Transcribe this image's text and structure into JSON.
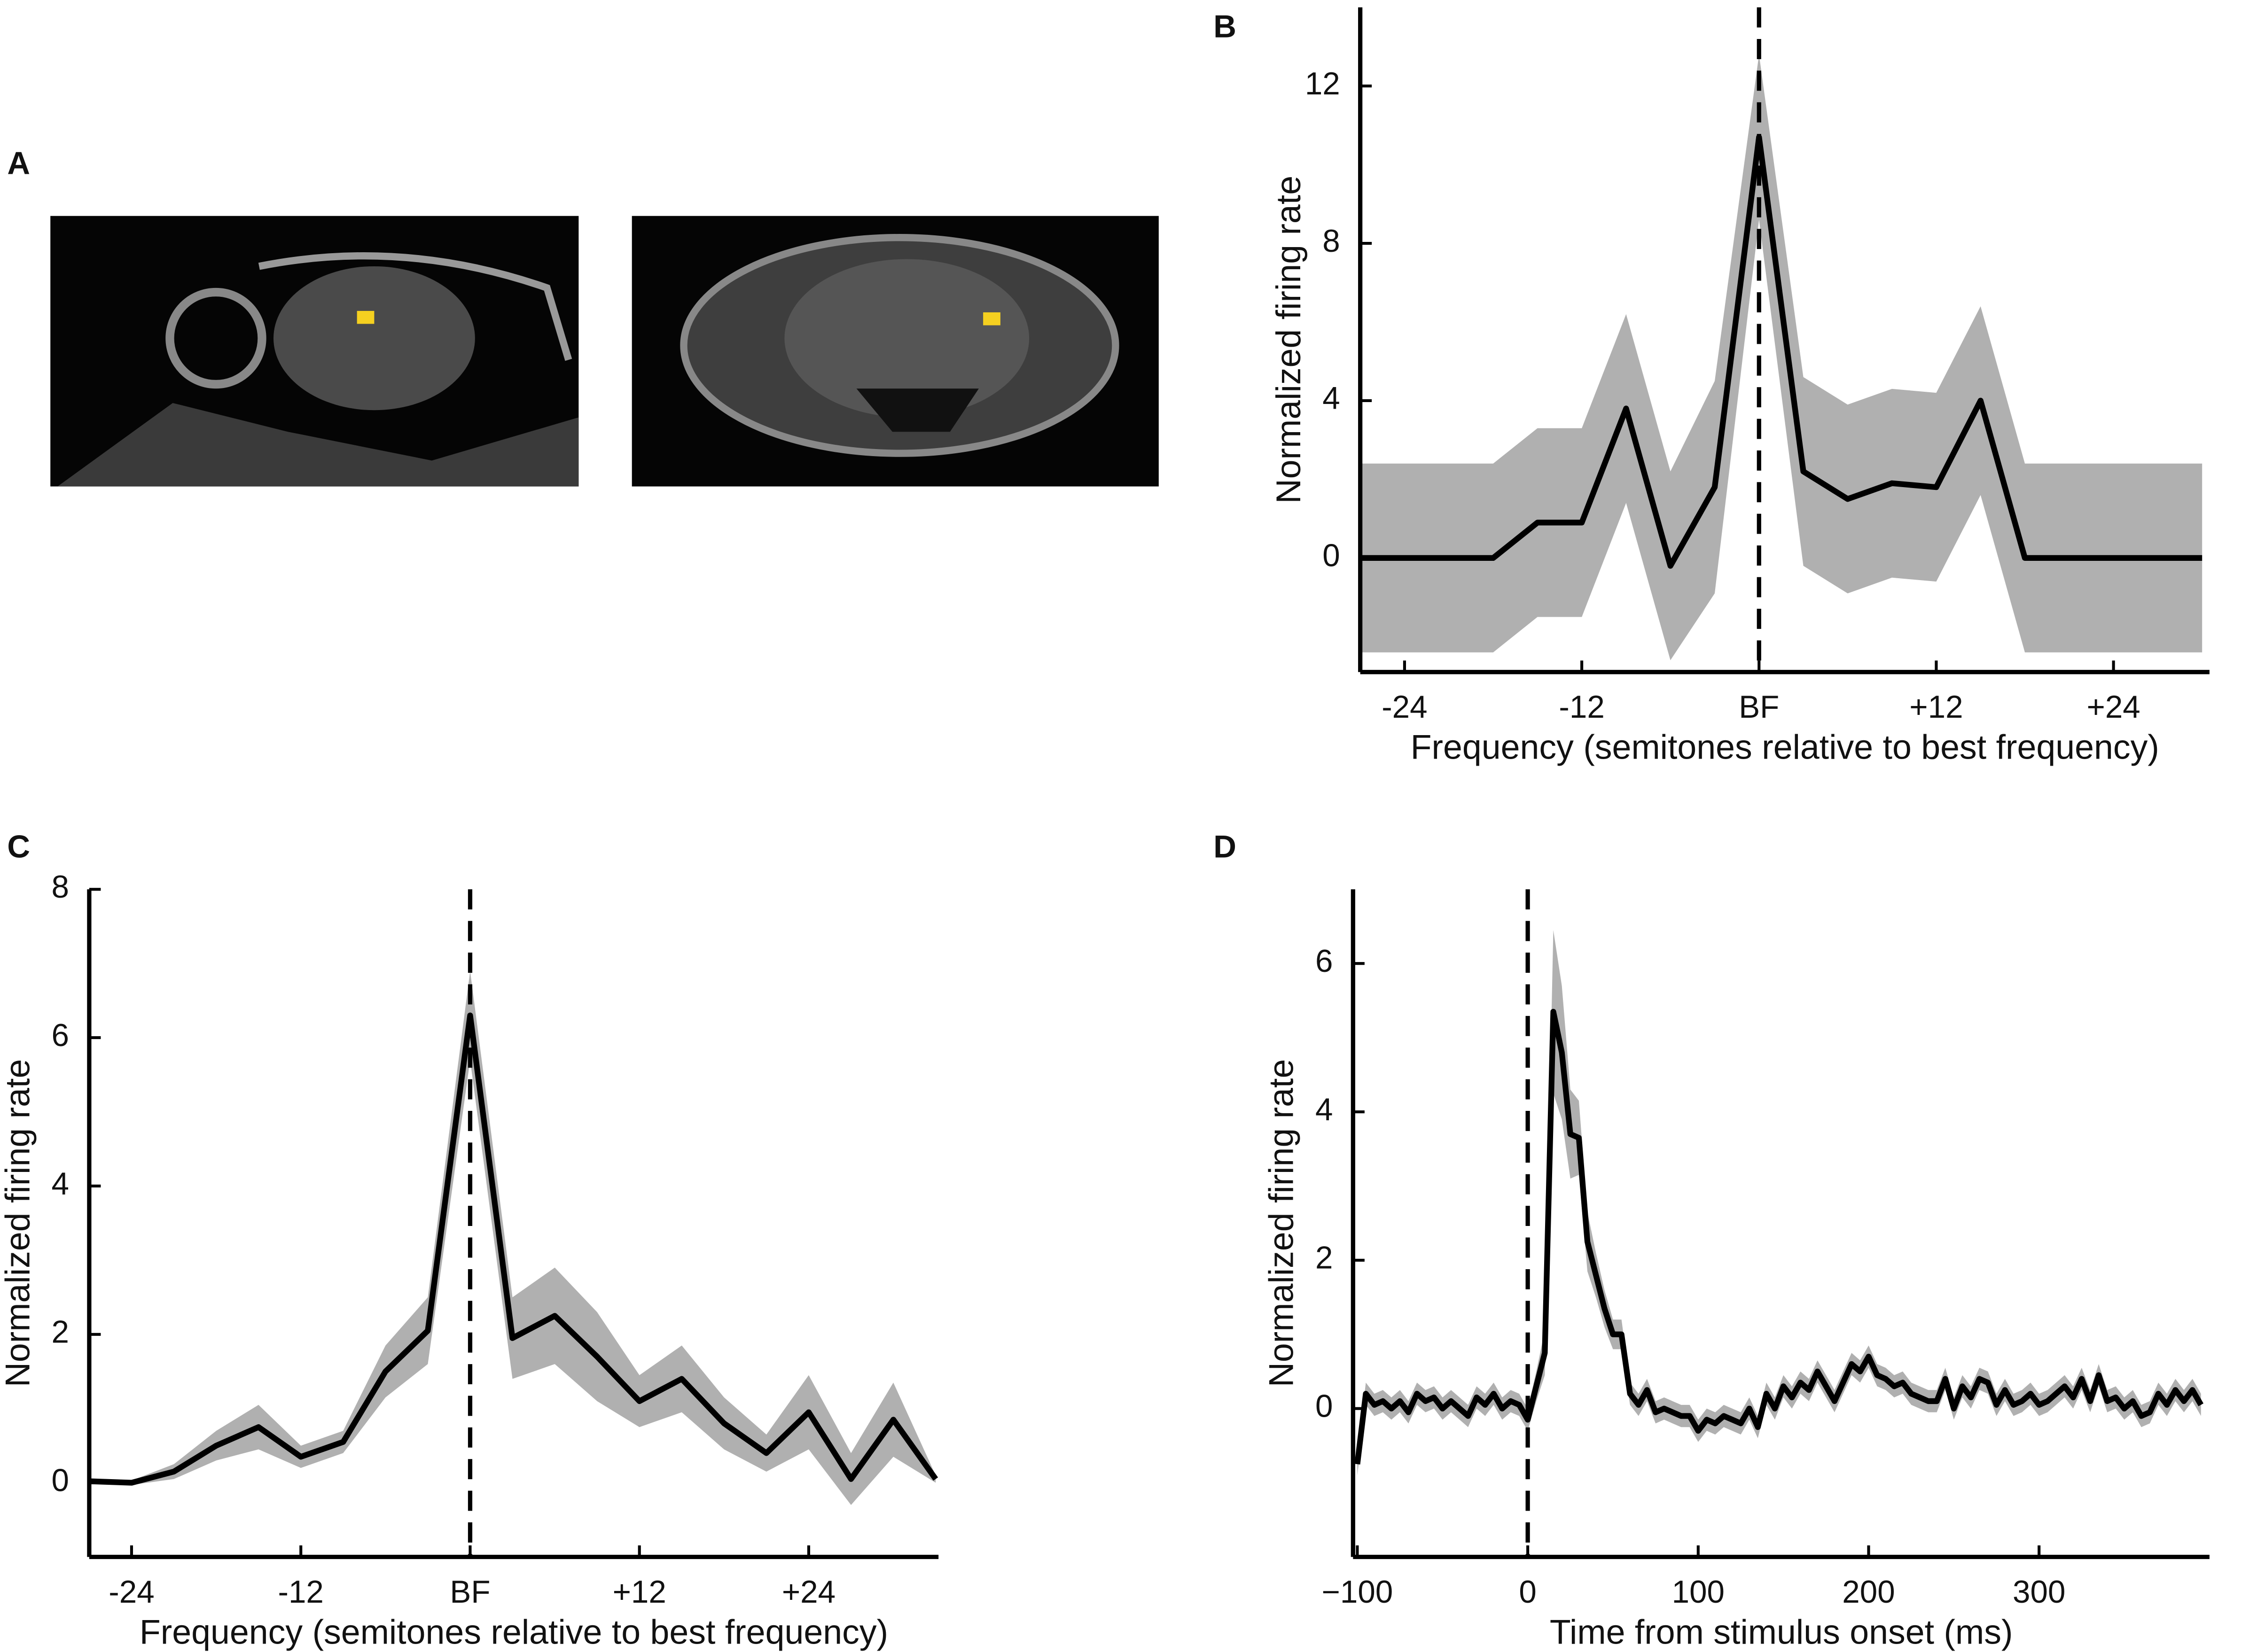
{
  "panel_a": {
    "label": "A"
  },
  "chart_data": [
    {
      "type": "line",
      "panel": "B",
      "xlabel": "Frequency (semitones relative to best frequency)",
      "ylabel": "Normalized firing rate",
      "x": [
        -27,
        -18,
        -15,
        -12,
        -9,
        -6,
        -3,
        0,
        3,
        6,
        9,
        12,
        15,
        18,
        30
      ],
      "series": [
        {
          "color": "#000000",
          "band_color": "#b0b0b0",
          "values": [
            0,
            0,
            0.9,
            0.9,
            3.8,
            -0.2,
            1.8,
            10.7,
            2.2,
            1.5,
            1.9,
            1.8,
            4.0,
            0,
            0
          ],
          "error": [
            2.4,
            2.4,
            2.4,
            2.4,
            2.4,
            2.4,
            2.7,
            2.1,
            2.4,
            2.4,
            2.4,
            2.4,
            2.4,
            2.4,
            2.4
          ]
        }
      ],
      "vline": 0,
      "xlim": [
        -27,
        30.5
      ],
      "ylim": [
        -2.9,
        14
      ],
      "xticks": [
        -24,
        -12,
        {
          "value": 0,
          "label": "BF"
        },
        {
          "value": 12,
          "label": "+12"
        },
        {
          "value": 24,
          "label": "+24"
        }
      ],
      "yticks": [
        0,
        4,
        8,
        12
      ]
    },
    {
      "type": "line",
      "panel": "C",
      "xlabel": "Frequency (semitones relative to best frequency)",
      "ylabel": "Normalized firing rate",
      "x": [
        -27,
        -24,
        -21,
        -18,
        -15,
        -12,
        -9,
        -6,
        -3,
        0,
        3,
        6,
        9,
        12,
        15,
        18,
        21,
        24,
        27,
        30,
        33
      ],
      "series": [
        {
          "color": "#000000",
          "band_color": "#b0b0b0",
          "values": [
            0.02,
            0,
            0.15,
            0.5,
            0.75,
            0.35,
            0.55,
            1.5,
            2.05,
            6.3,
            1.95,
            2.25,
            1.7,
            1.1,
            1.4,
            0.8,
            0.4,
            0.95,
            0.05,
            0.85,
            0.05
          ],
          "error": [
            0.03,
            0.03,
            0.1,
            0.2,
            0.3,
            0.15,
            0.15,
            0.35,
            0.45,
            0.6,
            0.55,
            0.65,
            0.6,
            0.35,
            0.45,
            0.35,
            0.25,
            0.5,
            0.35,
            0.5,
            0.05
          ]
        }
      ],
      "vline": 0,
      "xlim": [
        -27,
        33.2
      ],
      "ylim": [
        -1,
        8
      ],
      "xticks": [
        -24,
        -12,
        {
          "value": 0,
          "label": "BF"
        },
        {
          "value": 12,
          "label": "+12"
        },
        {
          "value": 24,
          "label": "+24"
        }
      ],
      "yticks": [
        0,
        2,
        4,
        6,
        8
      ]
    },
    {
      "type": "line",
      "panel": "D",
      "xlabel": "Time from stimulus onset (ms)",
      "ylabel": "Normalized firing rate",
      "x": [
        -100,
        -95,
        -90,
        -85,
        -80,
        -75,
        -70,
        -65,
        -60,
        -55,
        -50,
        -45,
        -40,
        -35,
        -30,
        -25,
        -20,
        -15,
        -10,
        -5,
        0,
        5,
        10,
        15,
        20,
        25,
        30,
        35,
        40,
        45,
        50,
        55,
        60,
        65,
        70,
        75,
        80,
        85,
        90,
        95,
        100,
        105,
        110,
        115,
        120,
        125,
        130,
        135,
        140,
        145,
        150,
        155,
        160,
        165,
        170,
        175,
        180,
        185,
        190,
        195,
        200,
        205,
        210,
        215,
        220,
        225,
        230,
        235,
        240,
        245,
        250,
        255,
        260,
        265,
        270,
        275,
        280,
        285,
        290,
        295,
        300,
        305,
        310,
        315,
        320,
        325,
        330,
        335,
        340,
        345,
        350,
        355,
        360,
        365,
        370,
        375,
        380,
        385,
        390,
        395
      ],
      "series": [
        {
          "color": "#000000",
          "band_color": "#b0b0b0",
          "values": [
            -0.75,
            0.2,
            0.05,
            0.1,
            0,
            0.1,
            -0.05,
            0.2,
            0.1,
            0.15,
            0,
            0.1,
            0,
            -0.1,
            0.15,
            0.05,
            0.2,
            0,
            0.1,
            0.05,
            -0.15,
            0.3,
            0.75,
            5.35,
            4.8,
            3.7,
            3.65,
            2.25,
            1.8,
            1.35,
            1.0,
            1.0,
            0.2,
            0.05,
            0.25,
            -0.05,
            0,
            -0.05,
            -0.1,
            -0.1,
            -0.3,
            -0.15,
            -0.2,
            -0.1,
            -0.15,
            -0.2,
            0,
            -0.25,
            0.2,
            0,
            0.3,
            0.15,
            0.35,
            0.25,
            0.5,
            0.3,
            0.1,
            0.35,
            0.6,
            0.5,
            0.7,
            0.45,
            0.4,
            0.3,
            0.35,
            0.2,
            0.15,
            0.1,
            0.1,
            0.4,
            0,
            0.3,
            0.15,
            0.4,
            0.35,
            0.05,
            0.25,
            0.05,
            0.1,
            0.2,
            0.05,
            0.1,
            0.2,
            0.3,
            0.15,
            0.4,
            0.1,
            0.45,
            0.1,
            0.15,
            0,
            0.1,
            -0.1,
            -0.05,
            0.2,
            0.05,
            0.25,
            0.1,
            0.25,
            0.05
          ],
          "error": [
            0.15,
            0.15,
            0.15,
            0.15,
            0.15,
            0.15,
            0.15,
            0.15,
            0.15,
            0.15,
            0.15,
            0.15,
            0.15,
            0.15,
            0.15,
            0.15,
            0.15,
            0.15,
            0.15,
            0.15,
            0.15,
            0.2,
            0.3,
            1.1,
            0.9,
            0.6,
            0.5,
            0.4,
            0.3,
            0.25,
            0.2,
            0.2,
            0.15,
            0.15,
            0.15,
            0.15,
            0.15,
            0.15,
            0.15,
            0.15,
            0.15,
            0.15,
            0.15,
            0.15,
            0.15,
            0.15,
            0.15,
            0.15,
            0.15,
            0.15,
            0.15,
            0.15,
            0.15,
            0.15,
            0.15,
            0.15,
            0.15,
            0.15,
            0.15,
            0.15,
            0.15,
            0.15,
            0.15,
            0.15,
            0.15,
            0.15,
            0.15,
            0.15,
            0.15,
            0.15,
            0.15,
            0.15,
            0.15,
            0.15,
            0.15,
            0.15,
            0.15,
            0.15,
            0.15,
            0.15,
            0.15,
            0.15,
            0.15,
            0.15,
            0.15,
            0.15,
            0.15,
            0.15,
            0.15,
            0.15,
            0.15,
            0.15,
            0.15,
            0.15,
            0.15,
            0.15,
            0.15,
            0.15,
            0.15,
            0.15
          ]
        }
      ],
      "vline": 0,
      "xlim": [
        -102.5,
        400
      ],
      "ylim": [
        -2,
        7
      ],
      "xticks": [
        {
          "value": -100,
          "label": "−100"
        },
        0,
        100,
        200,
        300
      ],
      "yticks": [
        0,
        2,
        4,
        6
      ]
    }
  ]
}
